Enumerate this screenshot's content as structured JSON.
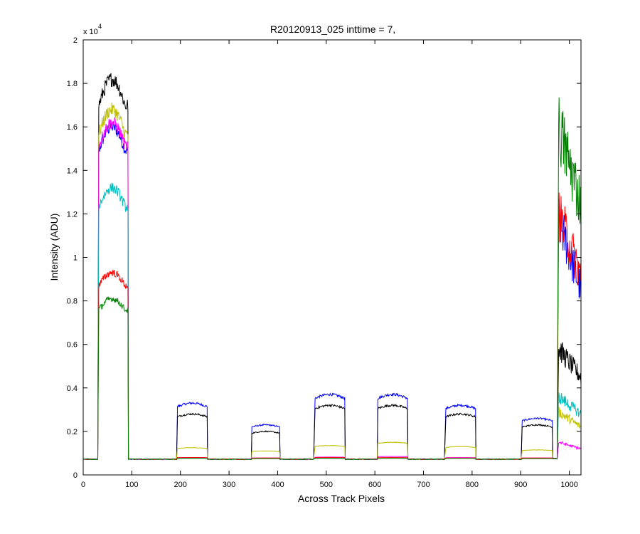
{
  "chart_data": {
    "type": "line",
    "title": "R20120913_025 inttime = 7,",
    "xlabel": "Across Track Pixels",
    "ylabel": "Intensity (ADU)",
    "y_multiplier": "x 10",
    "y_multiplier_exponent": "4",
    "xlim": [
      0,
      1024
    ],
    "ylim": [
      0,
      2
    ],
    "x_ticks": [
      0,
      100,
      200,
      300,
      400,
      500,
      600,
      700,
      800,
      900,
      1000
    ],
    "x_tick_labels": [
      "0",
      "100",
      "200",
      "300",
      "400",
      "500",
      "600",
      "700",
      "800",
      "900",
      "1000"
    ],
    "y_ticks": [
      0,
      0.2,
      0.4,
      0.6,
      0.8,
      1,
      1.2,
      1.4,
      1.6,
      1.8,
      2
    ],
    "y_tick_labels": [
      "0",
      "0.2",
      "0.4",
      "0.6",
      "0.8",
      "1",
      "1.2",
      "1.4",
      "1.6",
      "1.8",
      "2"
    ],
    "grid": false,
    "baseline": 0.072,
    "segments": [
      {
        "x0": 32,
        "x1": 92
      },
      {
        "x0": 194,
        "x1": 255
      },
      {
        "x0": 347,
        "x1": 404
      },
      {
        "x0": 477,
        "x1": 538
      },
      {
        "x0": 606,
        "x1": 667
      },
      {
        "x0": 746,
        "x1": 807
      },
      {
        "x0": 903,
        "x1": 965
      }
    ],
    "edge_segment": {
      "x0": 978,
      "x1": 1024
    },
    "series": [
      {
        "color": "#0000ff",
        "levels": [
          1.6,
          0.33,
          0.23,
          0.37,
          0.37,
          0.32,
          0.26
        ],
        "edge": [
          1.18,
          0.85
        ]
      },
      {
        "color": "#000000",
        "levels": [
          1.82,
          0.28,
          0.2,
          0.32,
          0.32,
          0.28,
          0.23
        ],
        "edge": [
          0.58,
          0.45
        ]
      },
      {
        "color": "#bfbf00",
        "levels": [
          1.68,
          0.125,
          0.11,
          0.135,
          0.15,
          0.13,
          0.115
        ],
        "edge": [
          0.29,
          0.22
        ]
      },
      {
        "color": "#ff00ff",
        "levels": [
          1.62,
          0.08,
          0.078,
          0.082,
          0.085,
          0.08,
          0.078
        ],
        "edge": [
          0.15,
          0.12
        ]
      },
      {
        "color": "#00bfbf",
        "levels": [
          1.32,
          0.078,
          0.076,
          0.078,
          0.08,
          0.077,
          0.076
        ],
        "edge": [
          0.36,
          0.28
        ]
      },
      {
        "color": "#ff0000",
        "levels": [
          0.93,
          0.08,
          0.078,
          0.08,
          0.08,
          0.078,
          0.078
        ],
        "edge": [
          1.2,
          0.92
        ]
      },
      {
        "color": "#007f00",
        "levels": [
          0.81,
          0.076,
          0.075,
          0.076,
          0.076,
          0.076,
          0.075
        ],
        "edge": [
          1.6,
          1.25
        ]
      }
    ]
  }
}
